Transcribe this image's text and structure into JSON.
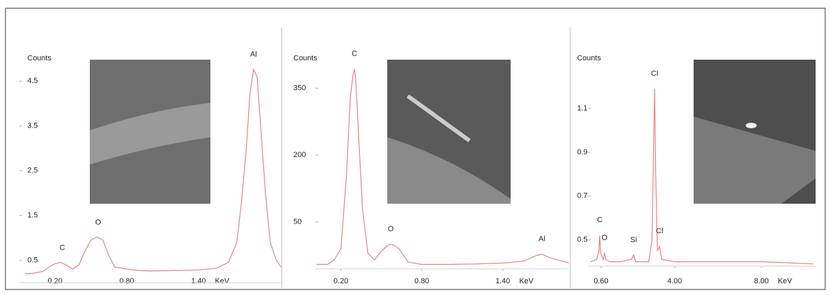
{
  "chart_data": [
    {
      "type": "line",
      "y_label": "Counts",
      "x_label": "KeV",
      "color": "#e8807a",
      "x": [
        -0.05,
        0,
        0.1,
        0.15,
        0.2,
        0.25,
        0.3,
        0.35,
        0.4,
        0.45,
        0.5,
        0.55,
        0.6,
        0.65,
        0.7,
        0.8,
        0.9,
        1.0,
        1.2,
        1.4,
        1.55,
        1.65,
        1.72,
        1.76,
        1.8,
        1.83,
        1.86,
        1.89,
        1.92,
        1.96,
        2.0,
        2.05,
        2.09
      ],
      "values": [
        0.2,
        0.2,
        0.25,
        0.35,
        0.42,
        0.45,
        0.38,
        0.3,
        0.4,
        0.7,
        0.95,
        1.02,
        0.95,
        0.6,
        0.35,
        0.3,
        0.27,
        0.26,
        0.27,
        0.28,
        0.32,
        0.45,
        0.9,
        1.8,
        3.0,
        4.2,
        4.76,
        4.6,
        3.5,
        2.0,
        0.9,
        0.5,
        0.35
      ],
      "xlim": [
        -0.1,
        2.09
      ],
      "ylim": [
        0,
        5.7
      ],
      "xticks": [
        {
          "value": 0.2,
          "label": "0.20"
        },
        {
          "value": 0.8,
          "label": "0.80"
        },
        {
          "value": 1.4,
          "label": "1.40"
        }
      ],
      "yticks": [
        4.5,
        3.5,
        2.5,
        1.5,
        0.5
      ],
      "peaks": [
        {
          "label": "C",
          "x": 0.26
        },
        {
          "label": "O",
          "x": 0.56
        },
        {
          "label": "Al",
          "x": 1.86
        }
      ]
    },
    {
      "type": "line",
      "y_label": "Counts",
      "x_label": "KeV",
      "color": "#e8807a",
      "x": [
        0.02,
        0.1,
        0.15,
        0.2,
        0.24,
        0.27,
        0.29,
        0.3,
        0.31,
        0.33,
        0.36,
        0.4,
        0.45,
        0.5,
        0.55,
        0.57,
        0.6,
        0.63,
        0.7,
        0.8,
        1.0,
        1.2,
        1.4,
        1.55,
        1.65,
        1.69,
        1.75,
        1.85,
        1.89
      ],
      "values": [
        -45,
        -45,
        -35,
        -10,
        150,
        330,
        380,
        393,
        370,
        250,
        80,
        -20,
        -35,
        -15,
        -2,
        0,
        -3,
        -10,
        -40,
        -45,
        -45,
        -44,
        -42,
        -38,
        -25,
        -22,
        -30,
        -38,
        -42
      ],
      "xlim": [
        0.01,
        1.89
      ],
      "ylim": [
        -55,
        480
      ],
      "xticks": [
        {
          "value": 0.2,
          "label": "0.20"
        },
        {
          "value": 0.8,
          "label": "0.80"
        },
        {
          "value": 1.4,
          "label": "1.40"
        }
      ],
      "yticks": [
        350,
        200,
        50
      ],
      "peaks": [
        {
          "label": "C",
          "x": 0.3
        },
        {
          "label": "O",
          "x": 0.57
        },
        {
          "label": "Al",
          "x": 1.69
        }
      ]
    },
    {
      "type": "line",
      "y_label": "Counts",
      "x_label": "KeV",
      "color": "#e8807a",
      "x": [
        0.1,
        0.4,
        0.5,
        0.54,
        0.58,
        0.7,
        0.76,
        0.82,
        1.0,
        1.5,
        2.0,
        2.1,
        2.2,
        2.8,
        2.95,
        3.02,
        3.07,
        3.12,
        3.2,
        3.3,
        3.4,
        4,
        6,
        8,
        10.4
      ],
      "values": [
        0.4,
        0.41,
        0.45,
        0.52,
        0.44,
        0.41,
        0.44,
        0.41,
        0.4,
        0.4,
        0.41,
        0.43,
        0.4,
        0.4,
        0.5,
        0.9,
        1.19,
        0.8,
        0.45,
        0.47,
        0.41,
        0.4,
        0.4,
        0.4,
        0.39
      ],
      "xlim": [
        0,
        10.5
      ],
      "ylim": [
        0.38,
        1.47
      ],
      "xticks": [
        {
          "value": 0.6,
          "label": "0.60"
        },
        {
          "value": 4,
          "label": "4.00"
        },
        {
          "value": 8,
          "label": "8.00"
        }
      ],
      "yticks": [
        1.1,
        0.9,
        0.7,
        0.5
      ],
      "peaks": [
        {
          "label": "C",
          "x": 0.54
        },
        {
          "label": "O",
          "x": 0.76
        },
        {
          "label": "Si",
          "x": 2.1
        },
        {
          "label": "Cl",
          "x": 3.07
        },
        {
          "label": "Cl",
          "x": 3.3
        }
      ]
    }
  ]
}
